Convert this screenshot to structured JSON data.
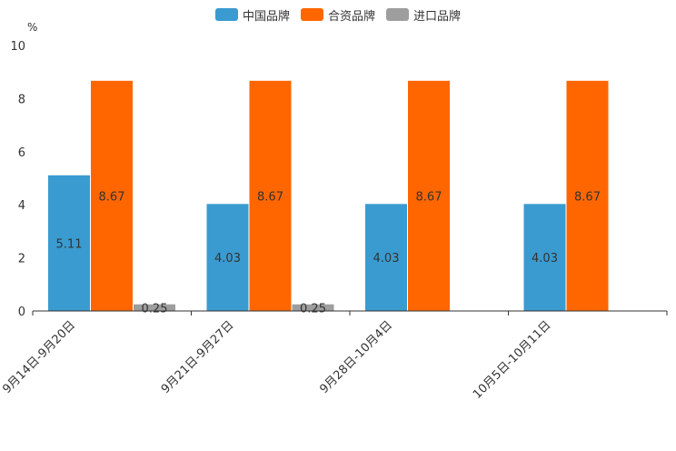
{
  "chart_data": {
    "type": "bar",
    "title": "",
    "xlabel": "",
    "ylabel": "%",
    "ylim": [
      0,
      10
    ],
    "yticks": [
      0,
      2,
      4,
      6,
      8,
      10
    ],
    "categories": [
      "9月14日-9月20日",
      "9月21日-9月27日",
      "9月28日-10月4日",
      "10月5日-10月11日"
    ],
    "series": [
      {
        "name": "中国品牌",
        "color": "#3a9bd0",
        "values": [
          5.11,
          4.03,
          4.03,
          4.03
        ]
      },
      {
        "name": "合资品牌",
        "color": "#ff6600",
        "values": [
          8.67,
          8.67,
          8.67,
          8.67
        ]
      },
      {
        "name": "进口品牌",
        "color": "#9e9e9e",
        "values": [
          0.25,
          0.25,
          null,
          null
        ]
      }
    ],
    "legend_position": "top-center",
    "grid": false
  }
}
